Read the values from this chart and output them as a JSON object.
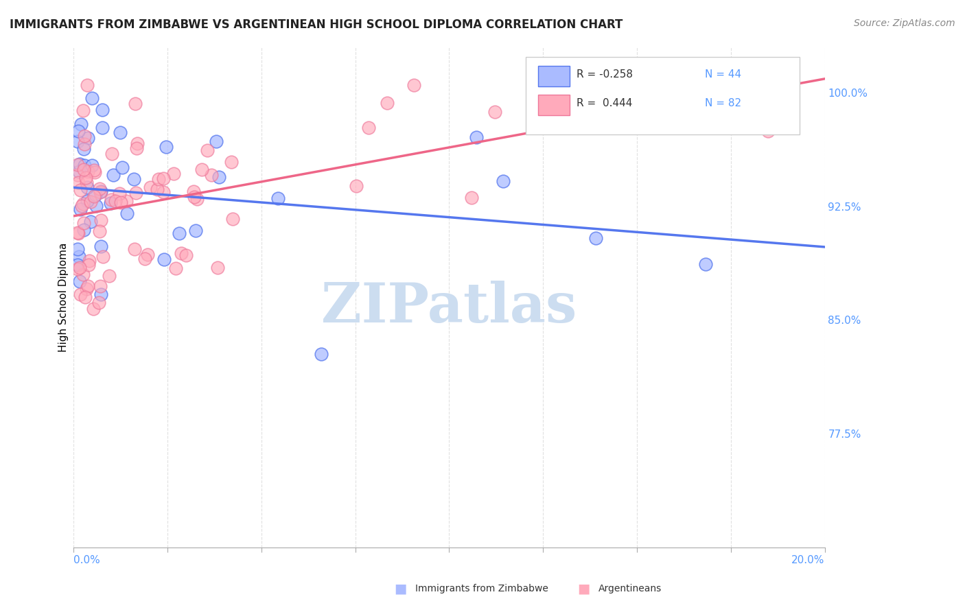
{
  "title": "IMMIGRANTS FROM ZIMBABWE VS ARGENTINEAN HIGH SCHOOL DIPLOMA CORRELATION CHART",
  "source": "Source: ZipAtlas.com",
  "ylabel": "High School Diploma",
  "right_yticks": [
    1.0,
    0.925,
    0.85,
    0.775
  ],
  "right_ytick_labels": [
    "100.0%",
    "92.5%",
    "85.0%",
    "77.5%"
  ],
  "xlim": [
    0.0,
    0.2
  ],
  "ylim": [
    0.7,
    1.03
  ],
  "color_blue": "#aabbff",
  "color_blue_edge": "#5577ee",
  "color_pink": "#ffaabb",
  "color_pink_edge": "#ee7799",
  "color_blue_line": "#5577ee",
  "color_pink_line": "#ee6688",
  "color_axis_label": "#5599ff",
  "watermark_color": "#ccddf0",
  "legend_r1": "R = -0.258",
  "legend_n1": "N = 44",
  "legend_r2": "R =  0.444",
  "legend_n2": "N = 82"
}
